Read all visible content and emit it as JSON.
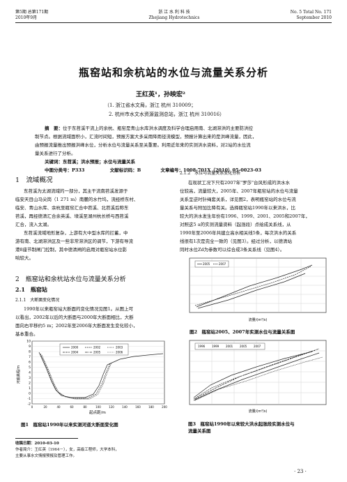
{
  "header": {
    "issue_cn": "第5期 总第171期",
    "date_cn": "2010年9月",
    "journal_cn": "浙 江 水 利 科 技",
    "journal_en": "Zhejiang Hydrotechnics",
    "issue_en": "No. 5  Total No. 171",
    "date_en": "September 2010"
  },
  "article": {
    "title": "瓶窑站和余杭站的水位与流量关系分析",
    "authors": "王红英¹，孙映宏²",
    "aff1": "（1. 浙江省水文局，浙江  杭州  310009；",
    "aff2": "2. 杭州市水文水资源监测总站，浙江  杭州  310016）",
    "abstract_label": "摘　要：",
    "abstract_lines": [
      "位于东苕溪干流上的余杭、瓶窑是青山水库洪水调度及科学合理启用南、北湖滞洪的主要防洪控",
      "制节点。根据流域面积小，汇流时间短，预报方案大多采用降雨径流模型，预报计算出来的是洪峰流量，因此，",
      "由预报流量推出预报洪峰水位，分析水位与流量关系至关重要。利用近年来的实测洪水资料，对2站的水位流",
      "量关系进行了分析。"
    ],
    "keywords": "关键词：东苕溪；洪水预报；水位与流量关系",
    "classification": "中图分类号：P333",
    "doc_code": "文献标识码：B",
    "article_no": "文章编号：1008-701X（2010）05-0023-03"
  },
  "left_col": {
    "sec1_title": "1　流域概况",
    "sec1_lines": [
      "东苕溪为太湖流域的一部分，其主干流南苕溪发源于",
      "临安天目山马尖岗（1 271 m）南麓的水竹坞，流经桥东村、",
      "临安、青山水库、余杭至瓶窑汇合中苕溪、北苕溪后称东",
      "苕溪，再经德清汇合余英溪、埭溪至湖州杭长桥与西苕溪",
      "汇合，流入太湖。",
      "东苕溪流域地形复杂，上游有大中型水库的拦蓄，中",
      "游有南、北湖滞洪区及一些非常滞洪区的调节，下游有导流",
      "港8座节制闸门控制，其中德清闸的启用对瓶窑站水位影",
      "响较大。"
    ],
    "sec2_title": "2　瓶窑站和余杭站水位与流量关系分析",
    "sec21_title": "2.1　瓶窑站",
    "sec211_title": "2.1.1　大断面变化情况",
    "sec211_lines": [
      "1990年以来瓶窑站大断面的变化情况见图1。从图上可",
      "以看出，2002年以后的大断面与2000年大断面相比，大断",
      "面向右平移约5 m；2002年至2006年大断面发生变化较小，",
      "基本重合。"
    ],
    "fig1_caption": "图1　瓶窑站1990年以来实测河道大断面变化图"
  },
  "right_col": {
    "sec212_title": "2.1.2　水位与流量关系变化分析",
    "sec212_lines": [
      "在现状工况下只有2007年\"罗莎\"台风形成的洪水水",
      "位较高，流量较大，2005年、2007年瓶窑站的水位与流量",
      "关系呈逆时针绳套关系，详见图2，表明瓶窑站的水位与流",
      "量关系与附加比降有关。选择瓶窑站1990年以来洪水，比",
      "较大的洪水发生年份有1996、1999、2001、2005和2007年，",
      "对照这5 a的实测流量资料（起涨段）点绘成关系线，从",
      "1990年至2006年共建立高水相关线5条，每次洪水的关系",
      "线很有1次是完全一致的（见图3）。经过分析，以德清站",
      "同时水位Zd为参数可以综合成3条关系线（见图4）。"
    ],
    "fig2_caption": "图2　瓶窑站2005、2007年实测水位与流量关系图",
    "fig3_caption": "图3　瓶窑站1990年以来较大洪水起涨段实测水位与",
    "fig3_caption2": "流量关系图"
  },
  "footnote": {
    "received": "收稿日期：2010-03-10",
    "author": "作者简介：王红英（1964－），女，高级工程师，大学本科，",
    "author2": "主要从事水文情报预报及管理工作。"
  },
  "page_number": "· 23 ·",
  "charts": {
    "fig1": {
      "type": "line",
      "ylabel": "河底高程/m",
      "xlabel": "起点距/m",
      "ylim": [
        -2,
        10
      ],
      "yticks": [
        "10",
        "9",
        "8",
        "7",
        "6",
        "5",
        "4",
        "3",
        "2",
        "1",
        "0",
        "-1",
        "-2"
      ],
      "xticks": [
        "0",
        "20",
        "40",
        "60",
        "80",
        "100",
        "120",
        "140",
        "160",
        "180",
        "200"
      ],
      "legend": [
        "2000",
        "2002",
        "2003",
        "2004",
        "2005",
        "2006"
      ]
    },
    "fig2": {
      "type": "line",
      "xlabel": "流量/(m³/s)",
      "legend": [
        "2005",
        "2007"
      ]
    },
    "fig3": {
      "type": "line",
      "xlabel": "流量/(m³/s)",
      "legend": [
        "1996",
        "1999",
        "2001",
        "2005",
        "2007"
      ]
    }
  }
}
